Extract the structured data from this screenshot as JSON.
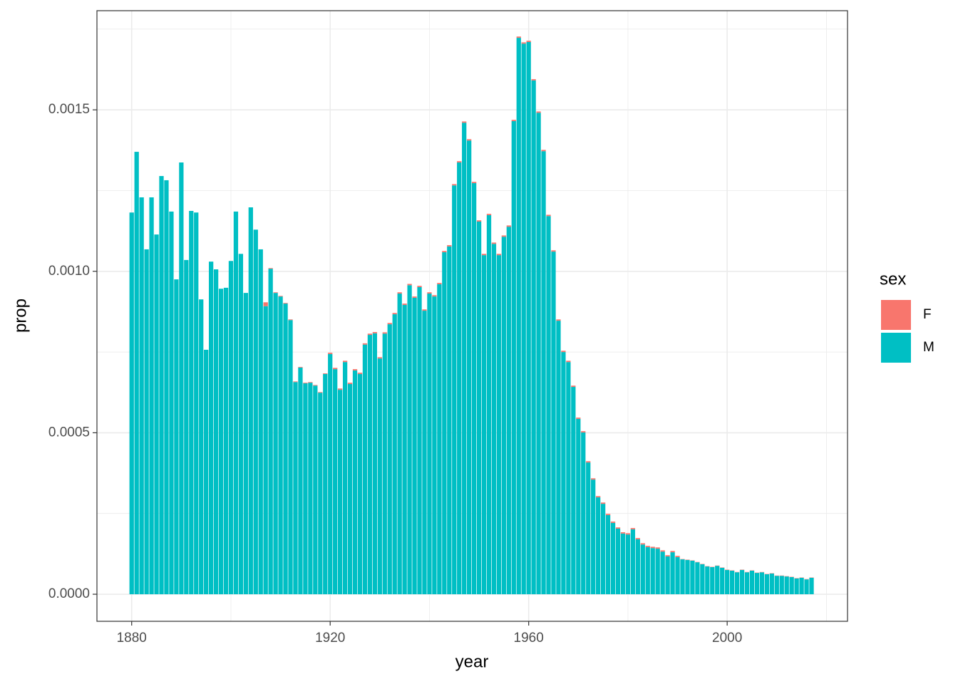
{
  "chart_data": {
    "type": "bar",
    "stacked": true,
    "x_label": "year",
    "y_label": "prop",
    "legend_title": "sex",
    "legend_position": "right",
    "x": [
      1880,
      1881,
      1882,
      1883,
      1884,
      1885,
      1886,
      1887,
      1888,
      1889,
      1890,
      1891,
      1892,
      1893,
      1894,
      1895,
      1896,
      1897,
      1898,
      1899,
      1900,
      1901,
      1902,
      1903,
      1904,
      1905,
      1906,
      1907,
      1908,
      1909,
      1910,
      1911,
      1912,
      1913,
      1914,
      1915,
      1916,
      1917,
      1918,
      1919,
      1920,
      1921,
      1922,
      1923,
      1924,
      1925,
      1926,
      1927,
      1928,
      1929,
      1930,
      1931,
      1932,
      1933,
      1934,
      1935,
      1936,
      1937,
      1938,
      1939,
      1940,
      1941,
      1942,
      1943,
      1944,
      1945,
      1946,
      1947,
      1948,
      1949,
      1950,
      1951,
      1952,
      1953,
      1954,
      1955,
      1956,
      1957,
      1958,
      1959,
      1960,
      1961,
      1962,
      1963,
      1964,
      1965,
      1966,
      1967,
      1968,
      1969,
      1970,
      1971,
      1972,
      1973,
      1974,
      1975,
      1976,
      1977,
      1978,
      1979,
      1980,
      1981,
      1982,
      1983,
      1984,
      1985,
      1986,
      1987,
      1988,
      1989,
      1990,
      1991,
      1992,
      1993,
      1994,
      1995,
      1996,
      1997,
      1998,
      1999,
      2000,
      2001,
      2002,
      2003,
      2004,
      2005,
      2006,
      2007,
      2008,
      2009,
      2010,
      2011,
      2012,
      2013,
      2014,
      2015,
      2016,
      2017
    ],
    "series": [
      {
        "name": "F",
        "color": "#f8766d",
        "values": [
          0,
          0,
          0,
          0,
          0,
          0,
          0,
          0,
          0,
          0,
          0,
          0,
          0,
          0,
          0,
          0,
          0,
          0,
          0,
          0,
          0,
          0,
          0,
          0,
          0,
          0,
          0,
          1.2e-05,
          2e-06,
          2e-06,
          2e-06,
          2e-06,
          2e-06,
          2e-06,
          2e-06,
          2e-06,
          2e-06,
          2e-06,
          2e-06,
          2e-06,
          4e-06,
          4e-06,
          4e-06,
          4e-06,
          4e-06,
          4e-06,
          4e-06,
          4e-06,
          4e-06,
          4e-06,
          4e-06,
          4e-06,
          4e-06,
          4e-06,
          4e-06,
          4e-06,
          4e-06,
          4e-06,
          4e-06,
          4e-06,
          4e-06,
          4e-06,
          4e-06,
          4e-06,
          4e-06,
          4e-06,
          4e-06,
          4e-06,
          4e-06,
          4e-06,
          4e-06,
          4e-06,
          4e-06,
          4e-06,
          4e-06,
          4e-06,
          4e-06,
          4e-06,
          4e-06,
          4e-06,
          4e-06,
          4e-06,
          4e-06,
          4e-06,
          4e-06,
          4e-06,
          4e-06,
          4e-06,
          4e-06,
          4e-06,
          4e-06,
          4e-06,
          4e-06,
          4e-06,
          4e-06,
          4e-06,
          4e-06,
          4e-06,
          4e-06,
          4e-06,
          4e-06,
          4e-06,
          4e-06,
          4e-06,
          4e-06,
          4e-06,
          4e-06,
          4e-06,
          4e-06,
          4e-06,
          4e-06,
          1e-06,
          1e-06,
          1e-06,
          1e-06,
          1e-06,
          1e-06,
          1e-06,
          1e-06,
          1e-06,
          1e-06,
          1e-06,
          1e-06,
          1e-06,
          1e-06,
          1e-06,
          1e-06,
          1e-06,
          1e-06,
          1e-06,
          1e-06,
          1e-06,
          1e-06,
          1e-06,
          1e-06,
          1e-06,
          1e-06,
          1e-06
        ]
      },
      {
        "name": "M",
        "color": "#00bfc4",
        "values": [
          0.001182,
          0.00137,
          0.001229,
          0.001068,
          0.001229,
          0.001114,
          0.001295,
          0.001282,
          0.001185,
          0.000975,
          0.001337,
          0.001035,
          0.001187,
          0.001182,
          0.000913,
          0.000757,
          0.00103,
          0.001006,
          0.000946,
          0.000949,
          0.001032,
          0.001185,
          0.001054,
          0.000933,
          0.001198,
          0.001129,
          0.001068,
          0.000892,
          0.001008,
          0.000933,
          0.000922,
          0.0009,
          0.000849,
          0.000657,
          0.000702,
          0.000653,
          0.000655,
          0.000646,
          0.000624,
          0.000682,
          0.000744,
          0.000697,
          0.000633,
          0.000719,
          0.000651,
          0.000693,
          0.000682,
          0.000773,
          0.000803,
          0.000808,
          0.00073,
          0.000807,
          0.000836,
          0.000867,
          0.000931,
          0.000896,
          0.000957,
          0.000918,
          0.000951,
          0.000878,
          0.000931,
          0.000922,
          0.00096,
          0.001059,
          0.001077,
          0.001266,
          0.001337,
          0.00146,
          0.001405,
          0.001273,
          0.001154,
          0.00105,
          0.001174,
          0.001085,
          0.00105,
          0.001107,
          0.001138,
          0.001465,
          0.001723,
          0.001705,
          0.00171,
          0.001591,
          0.001491,
          0.001372,
          0.001171,
          0.001061,
          0.000847,
          0.00075,
          0.000719,
          0.000642,
          0.000543,
          0.000501,
          0.000408,
          0.000355,
          0.0003,
          0.00028,
          0.000245,
          0.000221,
          0.000203,
          0.000188,
          0.000185,
          0.000201,
          0.00017,
          0.000154,
          0.000146,
          0.000143,
          0.000141,
          0.000132,
          0.000117,
          0.00013,
          0.000115,
          0.000108,
          0.000106,
          0.000104,
          9.9e-05,
          9.3e-05,
          8.6e-05,
          8.4e-05,
          8.8e-05,
          8.2e-05,
          7.5e-05,
          7.3e-05,
          6.8e-05,
          7.5e-05,
          6.8e-05,
          7.3e-05,
          6.6e-05,
          6.8e-05,
          6.2e-05,
          6.4e-05,
          5.7e-05,
          5.7e-05,
          5.5e-05,
          5.3e-05,
          4.9e-05,
          5.1e-05,
          4.6e-05,
          5.1e-05
        ]
      }
    ],
    "xlim": [
      1873,
      2024.25
    ],
    "xticks": [
      1880,
      1920,
      1960,
      2000
    ],
    "x_minor_ticks": [
      1900,
      1940,
      1980,
      2020
    ],
    "ylim": [
      -8.38e-05,
      0.001807
    ],
    "yticks": [
      {
        "value": 0,
        "label": "0.0000"
      },
      {
        "value": 0.0005,
        "label": "0.0005"
      },
      {
        "value": 0.001,
        "label": "0.0010"
      },
      {
        "value": 0.0015,
        "label": "0.0015"
      }
    ],
    "y_minor_ticks": [
      0.00025,
      0.00075,
      0.00125,
      0.00175
    ],
    "grid": true
  }
}
